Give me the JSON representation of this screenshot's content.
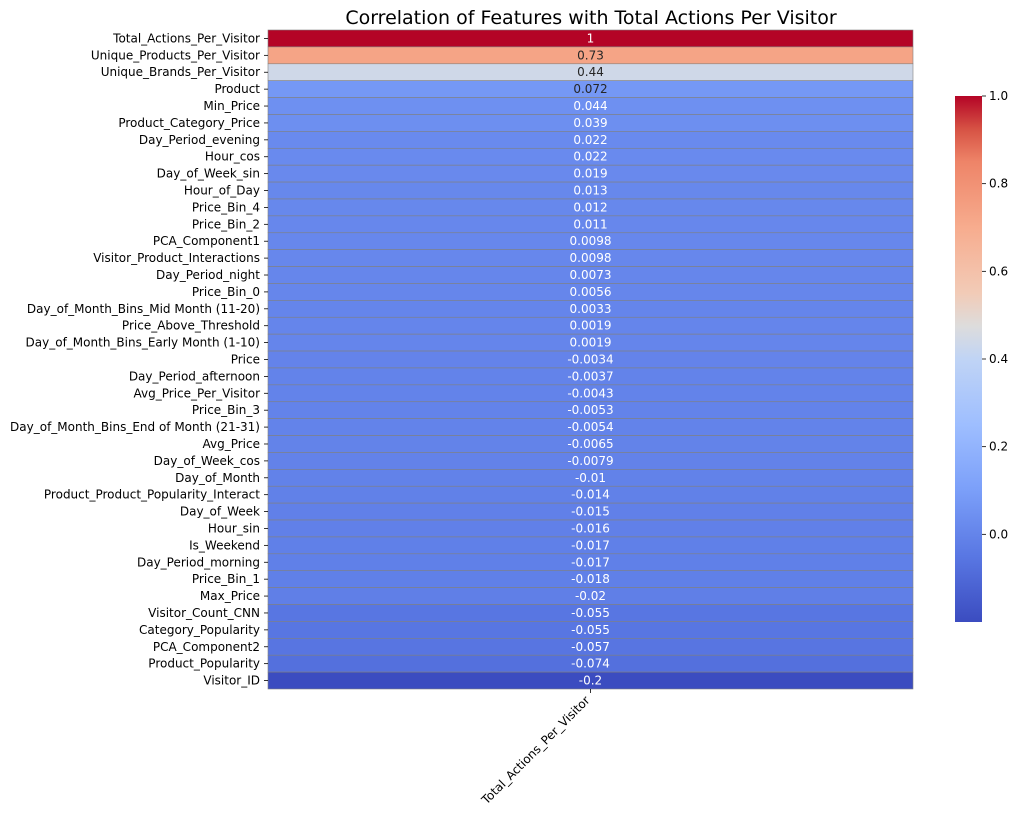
{
  "chart_data": {
    "type": "heatmap",
    "title": "Correlation of Features with Total Actions Per Visitor",
    "columns": [
      "Total_Actions_Per_Visitor"
    ],
    "rows": [
      {
        "label": "Total_Actions_Per_Visitor",
        "value": 1,
        "text": "1"
      },
      {
        "label": "Unique_Products_Per_Visitor",
        "value": 0.73,
        "text": "0.73"
      },
      {
        "label": "Unique_Brands_Per_Visitor",
        "value": 0.44,
        "text": "0.44"
      },
      {
        "label": "Product",
        "value": 0.072,
        "text": "0.072"
      },
      {
        "label": "Min_Price",
        "value": 0.044,
        "text": "0.044"
      },
      {
        "label": "Product_Category_Price",
        "value": 0.039,
        "text": "0.039"
      },
      {
        "label": "Day_Period_evening",
        "value": 0.022,
        "text": "0.022"
      },
      {
        "label": "Hour_cos",
        "value": 0.022,
        "text": "0.022"
      },
      {
        "label": "Day_of_Week_sin",
        "value": 0.019,
        "text": "0.019"
      },
      {
        "label": "Hour_of_Day",
        "value": 0.013,
        "text": "0.013"
      },
      {
        "label": "Price_Bin_4",
        "value": 0.012,
        "text": "0.012"
      },
      {
        "label": "Price_Bin_2",
        "value": 0.011,
        "text": "0.011"
      },
      {
        "label": "PCA_Component1",
        "value": 0.0098,
        "text": "0.0098"
      },
      {
        "label": "Visitor_Product_Interactions",
        "value": 0.0098,
        "text": "0.0098"
      },
      {
        "label": "Day_Period_night",
        "value": 0.0073,
        "text": "0.0073"
      },
      {
        "label": "Price_Bin_0",
        "value": 0.0056,
        "text": "0.0056"
      },
      {
        "label": "Day_of_Month_Bins_Mid Month (11-20)",
        "value": 0.0033,
        "text": "0.0033"
      },
      {
        "label": "Price_Above_Threshold",
        "value": 0.0019,
        "text": "0.0019"
      },
      {
        "label": "Day_of_Month_Bins_Early Month (1-10)",
        "value": 0.0019,
        "text": "0.0019"
      },
      {
        "label": "Price",
        "value": -0.0034,
        "text": "-0.0034"
      },
      {
        "label": "Day_Period_afternoon",
        "value": -0.0037,
        "text": "-0.0037"
      },
      {
        "label": "Avg_Price_Per_Visitor",
        "value": -0.0043,
        "text": "-0.0043"
      },
      {
        "label": "Price_Bin_3",
        "value": -0.0053,
        "text": "-0.0053"
      },
      {
        "label": "Day_of_Month_Bins_End of Month (21-31)",
        "value": -0.0054,
        "text": "-0.0054"
      },
      {
        "label": "Avg_Price",
        "value": -0.0065,
        "text": "-0.0065"
      },
      {
        "label": "Day_of_Week_cos",
        "value": -0.0079,
        "text": "-0.0079"
      },
      {
        "label": "Day_of_Month",
        "value": -0.01,
        "text": "-0.01"
      },
      {
        "label": "Product_Product_Popularity_Interact",
        "value": -0.014,
        "text": "-0.014"
      },
      {
        "label": "Day_of_Week",
        "value": -0.015,
        "text": "-0.015"
      },
      {
        "label": "Hour_sin",
        "value": -0.016,
        "text": "-0.016"
      },
      {
        "label": "Is_Weekend",
        "value": -0.017,
        "text": "-0.017"
      },
      {
        "label": "Day_Period_morning",
        "value": -0.017,
        "text": "-0.017"
      },
      {
        "label": "Price_Bin_1",
        "value": -0.018,
        "text": "-0.018"
      },
      {
        "label": "Max_Price",
        "value": -0.02,
        "text": "-0.02"
      },
      {
        "label": "Visitor_Count_CNN",
        "value": -0.055,
        "text": "-0.055"
      },
      {
        "label": "Category_Popularity",
        "value": -0.055,
        "text": "-0.055"
      },
      {
        "label": "PCA_Component2",
        "value": -0.057,
        "text": "-0.057"
      },
      {
        "label": "Product_Popularity",
        "value": -0.074,
        "text": "-0.074"
      },
      {
        "label": "Visitor_ID",
        "value": -0.2,
        "text": "-0.2"
      }
    ],
    "colorbar": {
      "colormap": "coolwarm",
      "vmin": -0.2,
      "vmax": 1.0,
      "ticks": [
        "1.0",
        "0.8",
        "0.6",
        "0.4",
        "0.2",
        "0.0"
      ],
      "tick_values": [
        1.0,
        0.8,
        0.6,
        0.4,
        0.2,
        0.0
      ]
    },
    "cell_border_color": "#808080"
  }
}
